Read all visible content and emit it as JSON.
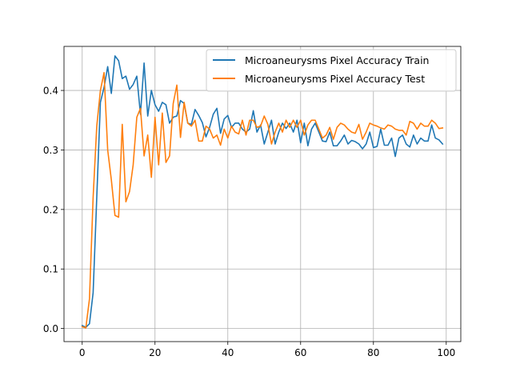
{
  "chart_data": {
    "type": "line",
    "title": "",
    "xlabel": "",
    "ylabel": "",
    "xlim": [
      -5,
      104
    ],
    "ylim": [
      -0.022,
      0.474
    ],
    "xticks": [
      0,
      20,
      40,
      60,
      80,
      100
    ],
    "yticks": [
      0.0,
      0.1,
      0.2,
      0.3,
      0.4
    ],
    "ytick_labels": [
      "0.0",
      "0.1",
      "0.2",
      "0.3",
      "0.4"
    ],
    "grid": true,
    "legend_position": "top-right",
    "series": [
      {
        "name": "Microaneurysms Pixel Accuracy Train",
        "color": "#1f77b4",
        "x": [
          0,
          1,
          2,
          3,
          4,
          5,
          6,
          7,
          8,
          9,
          10,
          11,
          12,
          13,
          14,
          15,
          16,
          17,
          18,
          19,
          20,
          21,
          22,
          23,
          24,
          25,
          26,
          27,
          28,
          29,
          30,
          31,
          32,
          33,
          34,
          35,
          36,
          37,
          38,
          39,
          40,
          41,
          42,
          43,
          44,
          45,
          46,
          47,
          48,
          49,
          50,
          51,
          52,
          53,
          54,
          55,
          56,
          57,
          58,
          59,
          60,
          61,
          62,
          63,
          64,
          65,
          66,
          67,
          68,
          69,
          70,
          71,
          72,
          73,
          74,
          75,
          76,
          77,
          78,
          79,
          80,
          81,
          82,
          83,
          84,
          85,
          86,
          87,
          88,
          89,
          90,
          91,
          92,
          93,
          94,
          95,
          96,
          97,
          98,
          99
        ],
        "values": [
          0.005,
          0.002,
          0.008,
          0.06,
          0.22,
          0.38,
          0.405,
          0.44,
          0.395,
          0.458,
          0.45,
          0.42,
          0.424,
          0.402,
          0.41,
          0.424,
          0.36,
          0.446,
          0.357,
          0.4,
          0.376,
          0.365,
          0.38,
          0.376,
          0.345,
          0.355,
          0.357,
          0.383,
          0.378,
          0.345,
          0.343,
          0.368,
          0.358,
          0.346,
          0.322,
          0.338,
          0.36,
          0.37,
          0.328,
          0.352,
          0.358,
          0.338,
          0.345,
          0.345,
          0.335,
          0.33,
          0.335,
          0.366,
          0.33,
          0.342,
          0.31,
          0.33,
          0.35,
          0.31,
          0.33,
          0.345,
          0.336,
          0.345,
          0.33,
          0.35,
          0.312,
          0.345,
          0.307,
          0.335,
          0.345,
          0.33,
          0.315,
          0.314,
          0.33,
          0.307,
          0.307,
          0.315,
          0.325,
          0.31,
          0.316,
          0.314,
          0.31,
          0.302,
          0.31,
          0.33,
          0.304,
          0.306,
          0.335,
          0.308,
          0.308,
          0.32,
          0.289,
          0.32,
          0.325,
          0.31,
          0.305,
          0.325,
          0.31,
          0.32,
          0.315,
          0.315,
          0.342,
          0.32,
          0.317,
          0.31
        ]
      },
      {
        "name": "Microaneurysms Pixel Accuracy Test",
        "color": "#ff7f0e",
        "x": [
          0,
          1,
          2,
          3,
          4,
          5,
          6,
          7,
          8,
          9,
          10,
          11,
          12,
          13,
          14,
          15,
          16,
          17,
          18,
          19,
          20,
          21,
          22,
          23,
          24,
          25,
          26,
          27,
          28,
          29,
          30,
          31,
          32,
          33,
          34,
          35,
          36,
          37,
          38,
          39,
          40,
          41,
          42,
          43,
          44,
          45,
          46,
          47,
          48,
          49,
          50,
          51,
          52,
          53,
          54,
          55,
          56,
          57,
          58,
          59,
          60,
          61,
          62,
          63,
          64,
          65,
          66,
          67,
          68,
          69,
          70,
          71,
          72,
          73,
          74,
          75,
          76,
          77,
          78,
          79,
          80,
          81,
          82,
          83,
          84,
          85,
          86,
          87,
          88,
          89,
          90,
          91,
          92,
          93,
          94,
          95,
          96,
          97,
          98,
          99
        ],
        "values": [
          0.003,
          0.001,
          0.05,
          0.22,
          0.34,
          0.4,
          0.43,
          0.3,
          0.25,
          0.19,
          0.187,
          0.343,
          0.213,
          0.23,
          0.275,
          0.355,
          0.37,
          0.29,
          0.325,
          0.254,
          0.355,
          0.275,
          0.362,
          0.279,
          0.29,
          0.378,
          0.409,
          0.321,
          0.38,
          0.345,
          0.34,
          0.35,
          0.315,
          0.315,
          0.34,
          0.335,
          0.32,
          0.325,
          0.308,
          0.335,
          0.32,
          0.34,
          0.33,
          0.327,
          0.35,
          0.325,
          0.35,
          0.35,
          0.338,
          0.34,
          0.357,
          0.343,
          0.31,
          0.33,
          0.345,
          0.33,
          0.35,
          0.338,
          0.35,
          0.338,
          0.35,
          0.325,
          0.342,
          0.35,
          0.35,
          0.335,
          0.32,
          0.325,
          0.338,
          0.318,
          0.338,
          0.345,
          0.342,
          0.335,
          0.33,
          0.328,
          0.343,
          0.318,
          0.33,
          0.345,
          0.342,
          0.34,
          0.337,
          0.335,
          0.342,
          0.34,
          0.335,
          0.333,
          0.333,
          0.325,
          0.348,
          0.345,
          0.335,
          0.345,
          0.34,
          0.34,
          0.35,
          0.345,
          0.336,
          0.337
        ]
      }
    ]
  }
}
